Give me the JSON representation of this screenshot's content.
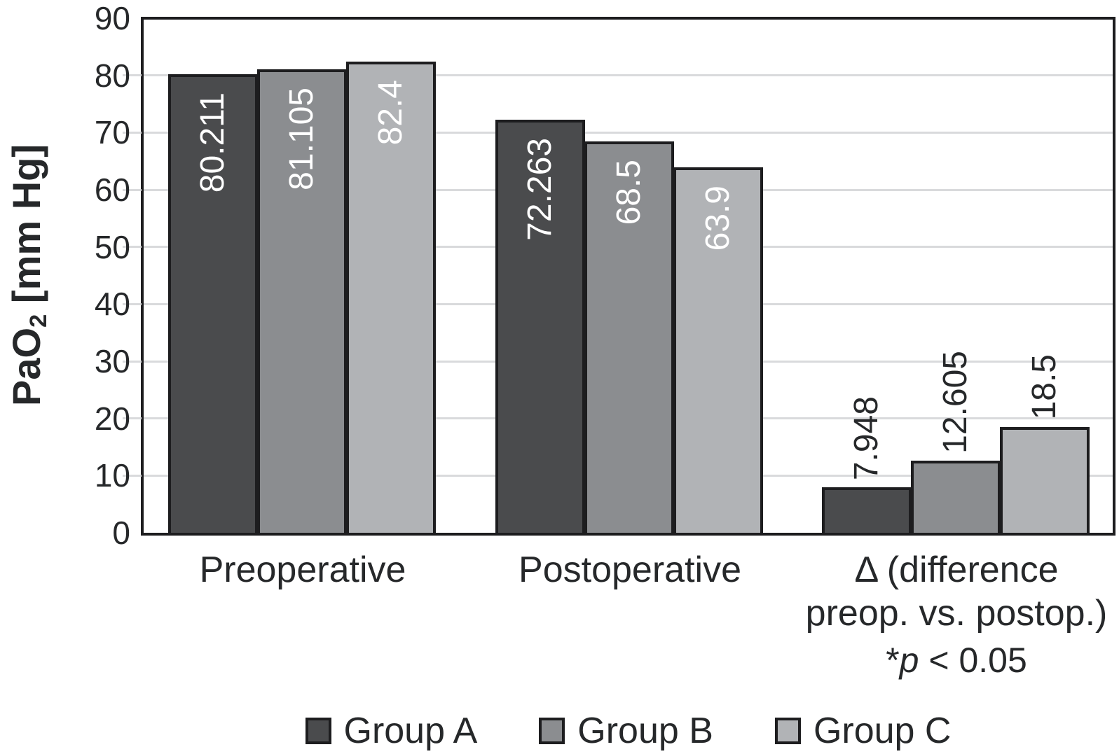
{
  "chart_data": {
    "type": "bar",
    "title": "",
    "ylabel": "PaO2 [mm Hg]",
    "ylabel_parts": {
      "base": "PaO",
      "subscript": "2",
      "unit": " [mm Hg]"
    },
    "xlabel": "",
    "ylim": [
      0,
      90
    ],
    "yticks": [
      0,
      10,
      20,
      30,
      40,
      50,
      60,
      70,
      80,
      90
    ],
    "grid": "horizontal light gray",
    "legend_position": "bottom",
    "categories": [
      "Preoperative",
      "Postoperative",
      "Δ (difference preop. vs. postop.)"
    ],
    "category_label_lines": [
      [
        "Preoperative"
      ],
      [
        "Postoperative"
      ],
      [
        "Δ (difference",
        "preop. vs. postop.)"
      ]
    ],
    "series": [
      {
        "name": "Group A",
        "color": "#4a4b4d",
        "values": [
          80.211,
          72.263,
          7.948
        ],
        "value_labels": [
          "80.211",
          "72.263",
          "7.948"
        ]
      },
      {
        "name": "Group B",
        "color": "#8b8d90",
        "values": [
          81.105,
          68.5,
          12.605
        ],
        "value_labels": [
          "81.105",
          "68.5",
          "12.605"
        ]
      },
      {
        "name": "Group C",
        "color": "#b1b3b6",
        "values": [
          82.4,
          63.9,
          18.5
        ],
        "value_labels": [
          "82.4",
          "63.9",
          "18.5"
        ]
      }
    ],
    "value_label_placement_per_category": [
      "inside-top-white",
      "inside-top-white",
      "above-black"
    ],
    "annotation": {
      "star": "*",
      "p_symbol": "p",
      "comparison": " < 0.05",
      "text": "*p < 0.05"
    },
    "legend": {
      "items": [
        "Group A",
        "Group B",
        "Group C"
      ]
    },
    "colors": {
      "axis": "#1d1d1f",
      "grid": "#d9dadc",
      "value_label_inside": "#ffffff",
      "text": "#26282a"
    }
  }
}
